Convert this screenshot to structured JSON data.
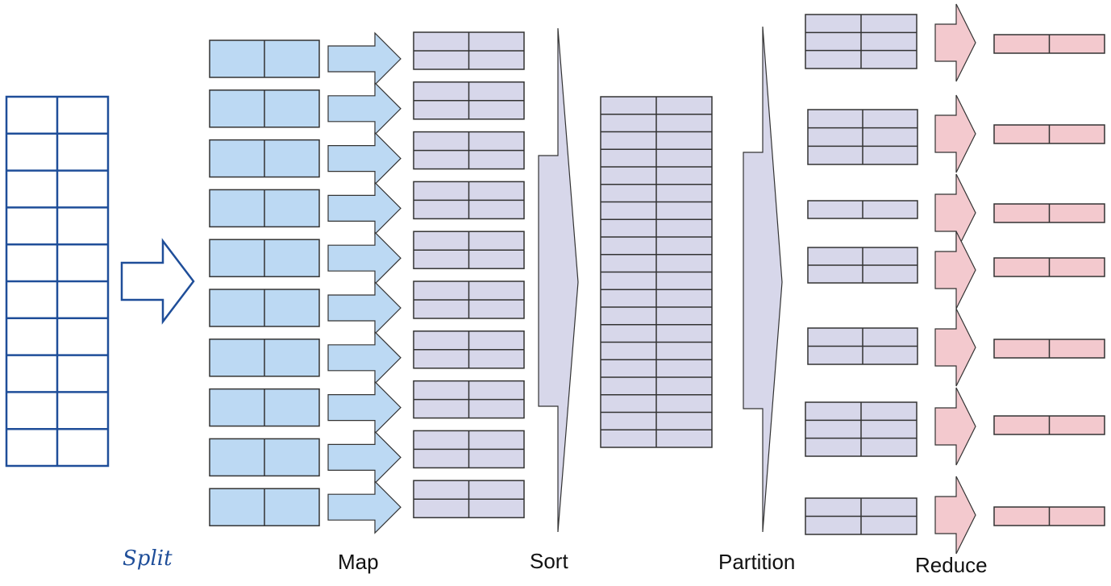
{
  "labels": {
    "split": "Split",
    "map": "Map",
    "sort": "Sort",
    "partition": "Partition",
    "reduce": "Reduce"
  },
  "colors": {
    "split_stroke": "#1f4e99",
    "map_fill": "#bcd9f3",
    "kv_fill": "#d7d7ea",
    "reduce_fill": "#f3c9ce",
    "stroke": "#333333"
  },
  "stages": {
    "input_rows": 10,
    "map_tasks": 10,
    "mapped_rows_per_task": 2,
    "sorted_rows": 20,
    "partitions": [
      {
        "rows": 3
      },
      {
        "rows": 3
      },
      {
        "rows": 1
      },
      {
        "rows": 2
      },
      {
        "rows": 2
      },
      {
        "rows": 3
      },
      {
        "rows": 2
      }
    ],
    "reduce_outputs": 7
  }
}
